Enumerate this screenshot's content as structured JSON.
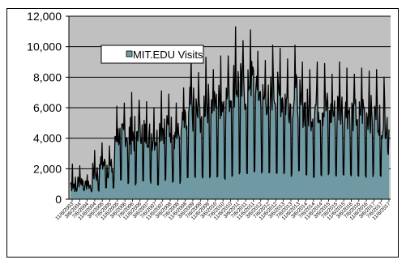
{
  "chart_data": {
    "type": "area",
    "title": "",
    "xlabel": "",
    "ylabel": "",
    "ylim": [
      0,
      12000
    ],
    "y_ticks": [
      "0",
      "2,000",
      "4,000",
      "6,000",
      "8,000",
      "10,000",
      "12,000"
    ],
    "grid": "horizontal",
    "legend_position": "top-left",
    "plot_background": "#c0c0c0",
    "fill_color": "#6f9aa3",
    "line_color": "#000000",
    "x_tick_labels": [
      "11/6/2003",
      "3/6/2004",
      "7/6/2004",
      "11/6/2004",
      "3/6/2005",
      "7/6/2005",
      "11/6/2005",
      "3/6/2006",
      "7/6/2006",
      "11/6/2006",
      "3/6/2007",
      "7/6/2007",
      "11/6/2007",
      "3/6/2008",
      "7/6/2008",
      "11/6/2008",
      "3/6/2009",
      "7/6/2009",
      "11/6/2009",
      "3/6/2010",
      "7/6/2010",
      "11/6/2010",
      "3/6/2011",
      "7/6/2011",
      "11/6/2011",
      "3/6/2012",
      "7/6/2012",
      "11/6/2012",
      "3/6/2013",
      "7/6/2013",
      "11/6/2013",
      "3/6/2014",
      "7/6/2014",
      "11/6/2014",
      "3/6/2015",
      "7/6/2015",
      "11/6/2015",
      "3/6/2016",
      "7/6/2016",
      "11/6/2016",
      "3/6/2017",
      "7/6/2017",
      "11/6/2017"
    ],
    "series": [
      {
        "name": "MIT.EDU Visits",
        "period_starts": [
          "11/6/2003",
          "3/6/2004",
          "7/6/2004",
          "11/6/2004",
          "3/6/2005",
          "7/6/2005",
          "11/6/2005",
          "3/6/2006",
          "7/6/2006",
          "11/6/2006",
          "3/6/2007",
          "7/6/2007",
          "11/6/2007",
          "3/6/2008",
          "7/6/2008",
          "11/6/2008",
          "3/6/2009",
          "7/6/2009",
          "11/6/2009",
          "3/6/2010",
          "7/6/2010",
          "11/6/2010",
          "3/6/2011",
          "7/6/2011",
          "11/6/2011",
          "3/6/2012",
          "7/6/2012",
          "11/6/2012",
          "3/6/2013",
          "7/6/2013",
          "11/6/2013",
          "3/6/2014",
          "7/6/2014",
          "11/6/2014",
          "3/6/2015",
          "7/6/2015",
          "11/6/2015",
          "3/6/2016",
          "7/6/2016",
          "11/6/2016",
          "3/6/2017",
          "7/6/2017",
          "11/6/2017"
        ],
        "period_max": [
          2300,
          2200,
          1600,
          3200,
          3700,
          3500,
          6100,
          6300,
          7000,
          6500,
          6400,
          6000,
          7100,
          6900,
          6300,
          7300,
          9300,
          8300,
          9300,
          8500,
          9400,
          9400,
          11300,
          10400,
          11100,
          9700,
          9100,
          10100,
          9900,
          9200,
          10100,
          9000,
          8500,
          9000,
          8900,
          8200,
          9000,
          8600,
          8200,
          8600,
          8400,
          8500,
          8000
        ],
        "period_min": [
          400,
          500,
          400,
          500,
          700,
          600,
          1000,
          900,
          800,
          1000,
          1000,
          900,
          1100,
          1100,
          1000,
          1200,
          1300,
          1200,
          1400,
          1400,
          1300,
          1500,
          1600,
          1500,
          1700,
          1600,
          1500,
          1600,
          1600,
          1500,
          1600,
          1500,
          1400,
          1500,
          1500,
          1400,
          1500,
          1400,
          1300,
          1400,
          1400,
          1300,
          2900
        ],
        "period_typical": [
          1000,
          1200,
          900,
          1700,
          2300,
          2000,
          4200,
          4300,
          4200,
          4500,
          4300,
          4000,
          4700,
          4600,
          4200,
          4800,
          5800,
          5500,
          6300,
          6200,
          6400,
          6700,
          7600,
          7100,
          7800,
          6900,
          6500,
          7000,
          6700,
          6300,
          6800,
          6000,
          5700,
          6100,
          5900,
          5600,
          6000,
          5800,
          5500,
          5800,
          5600,
          5500,
          5200
        ]
      }
    ]
  }
}
